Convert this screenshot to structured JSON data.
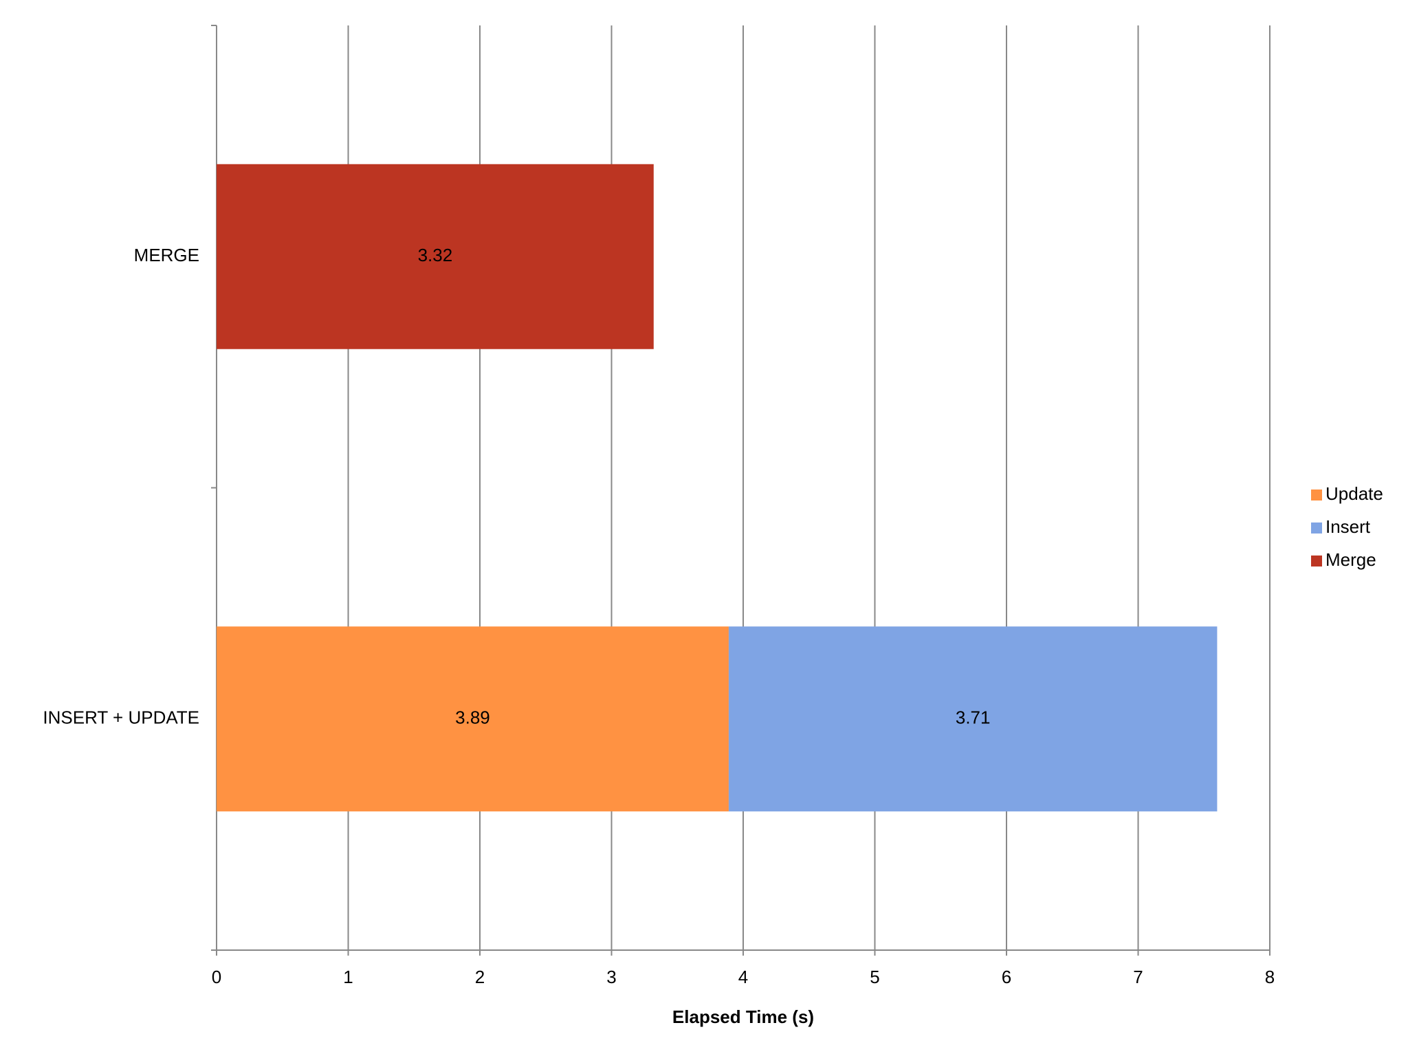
{
  "chart_data": {
    "type": "bar",
    "orientation": "horizontal",
    "stacked": true,
    "x_label": "Elapsed Time (s)",
    "categories": [
      "MERGE",
      "INSERT + UPDATE"
    ],
    "series": [
      {
        "name": "Update",
        "color": "#ff9242",
        "values": [
          null,
          3.89
        ]
      },
      {
        "name": "Insert",
        "color": "#7fa4e4",
        "values": [
          null,
          3.71
        ]
      },
      {
        "name": "Merge",
        "color": "#bc3522",
        "values": [
          3.32,
          null
        ]
      }
    ],
    "xlim": [
      0,
      8
    ],
    "xticks": [
      0,
      1,
      2,
      3,
      4,
      5,
      6,
      7,
      8
    ],
    "grid": true,
    "legend": "right"
  }
}
